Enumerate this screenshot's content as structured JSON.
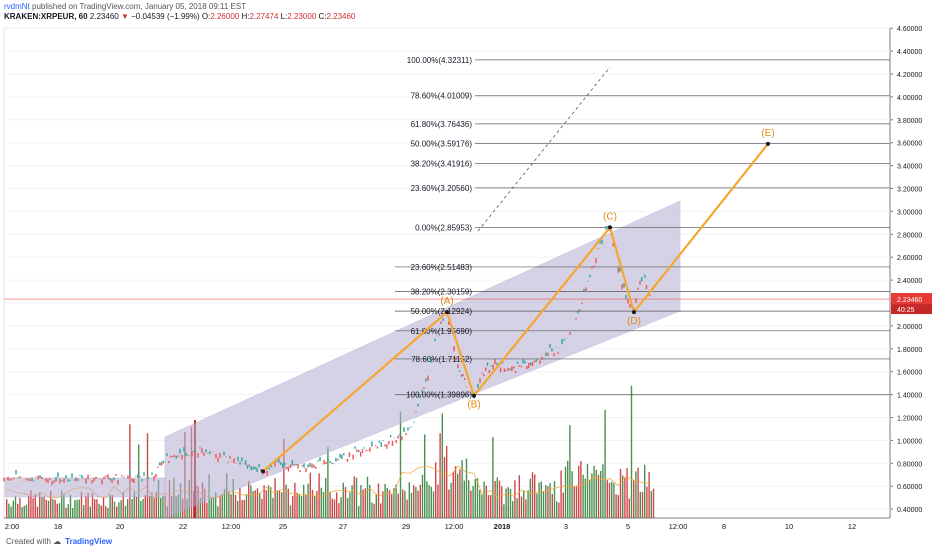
{
  "header": {
    "author": "rvdmNt",
    "published": "published on TradingView.com, January 05, 2018 09:11 EST",
    "symbol": "KRAKEN:XRPEUR, 60",
    "last": "2.23460",
    "change_arrow": "▼",
    "change": "−0.04539 (−1.99%)",
    "open_label": "O:",
    "open": "2.26000",
    "high_label": "H:",
    "high": "2.27474",
    "low_label": "L:",
    "low": "2.23000",
    "close_label": "C:",
    "close": "2.23460"
  },
  "footer": {
    "created_with": "Created with",
    "brand": "TradingView"
  },
  "chart_data": {
    "type": "line",
    "title": "",
    "ylim": [
      0.3,
      4.7
    ],
    "y_ticks": [
      "4.60000",
      "4.40000",
      "4.20000",
      "4.00000",
      "3.80000",
      "3.60000",
      "3.40000",
      "3.20000",
      "3.00000",
      "2.80000",
      "2.60000",
      "2.40000",
      "2.20000",
      "2.00000",
      "1.80000",
      "1.60000",
      "1.40000",
      "1.20000",
      "1.00000",
      "0.80000",
      "0.60000",
      "0.40000"
    ],
    "x_tick_labels": [
      "2:00",
      "18",
      "20",
      "22",
      "12:00",
      "25",
      "27",
      "29",
      "12:00",
      "2018",
      "3",
      "5",
      "12:00",
      "8",
      "10",
      "12"
    ],
    "last_price_label": "2.23460",
    "countdown_label": "40:25",
    "price_colors": {
      "up": "#26a69a",
      "down": "#ef5350",
      "wave": "#f7a531",
      "channel": "#b6aed3"
    },
    "fib_levels": [
      {
        "label": "100.00%(4.32311)",
        "value": 4.32311
      },
      {
        "label": "78.60%(4.01009)",
        "value": 4.01009
      },
      {
        "label": "61.80%(3.76436)",
        "value": 3.76436
      },
      {
        "label": "50.00%(3.59176)",
        "value": 3.59176
      },
      {
        "label": "38.20%(3.41916)",
        "value": 3.41916
      },
      {
        "label": "23.60%(3.20560)",
        "value": 3.2056
      },
      {
        "label": "0.00%(2.85953)",
        "value": 2.85953
      },
      {
        "label": "23.60%(2.51483)",
        "value": 2.51483
      },
      {
        "label": "38.20%(2.30159)",
        "value": 2.30159
      },
      {
        "label": "50.00%(2.12924)",
        "value": 2.12924
      },
      {
        "label": "61.80%(1.95690)",
        "value": 1.9569
      },
      {
        "label": "78.60%(1.71152)",
        "value": 1.71152
      },
      {
        "label": "100.00%(1.39896)",
        "value": 1.39896
      }
    ],
    "waves": [
      {
        "label": "",
        "x": 263,
        "value": 0.73
      },
      {
        "label": "(A)",
        "x": 447,
        "value": 2.12
      },
      {
        "label": "(B)",
        "x": 474,
        "value": 1.39
      },
      {
        "label": "(C)",
        "x": 610,
        "value": 2.86
      },
      {
        "label": "(D)",
        "x": 634,
        "value": 2.12
      },
      {
        "label": "(E)",
        "x": 768,
        "value": 3.59
      }
    ],
    "price_series": [
      [
        4,
        0.68
      ],
      [
        40,
        0.66
      ],
      [
        80,
        0.67
      ],
      [
        120,
        0.68
      ],
      [
        150,
        0.66
      ],
      [
        158,
        0.75
      ],
      [
        165,
        0.84
      ],
      [
        180,
        0.87
      ],
      [
        200,
        0.91
      ],
      [
        220,
        0.87
      ],
      [
        240,
        0.8
      ],
      [
        255,
        0.75
      ],
      [
        263,
        0.73
      ],
      [
        275,
        0.79
      ],
      [
        300,
        0.77
      ],
      [
        320,
        0.8
      ],
      [
        340,
        0.82
      ],
      [
        355,
        0.91
      ],
      [
        370,
        0.93
      ],
      [
        385,
        0.98
      ],
      [
        400,
        1.05
      ],
      [
        412,
        1.12
      ],
      [
        420,
        1.35
      ],
      [
        428,
        1.55
      ],
      [
        435,
        1.85
      ],
      [
        441,
        2.05
      ],
      [
        447,
        2.12
      ],
      [
        452,
        1.95
      ],
      [
        458,
        1.65
      ],
      [
        463,
        1.55
      ],
      [
        468,
        1.45
      ],
      [
        474,
        1.39
      ],
      [
        482,
        1.58
      ],
      [
        495,
        1.68
      ],
      [
        510,
        1.62
      ],
      [
        525,
        1.66
      ],
      [
        540,
        1.7
      ],
      [
        550,
        1.78
      ],
      [
        560,
        1.8
      ],
      [
        570,
        1.92
      ],
      [
        580,
        2.15
      ],
      [
        590,
        2.45
      ],
      [
        600,
        2.7
      ],
      [
        606,
        2.82
      ],
      [
        610,
        2.86
      ],
      [
        615,
        2.7
      ],
      [
        620,
        2.45
      ],
      [
        626,
        2.25
      ],
      [
        630,
        2.18
      ],
      [
        634,
        2.12
      ],
      [
        640,
        2.4
      ],
      [
        645,
        2.45
      ],
      [
        648,
        2.3
      ],
      [
        652,
        2.23
      ]
    ]
  }
}
